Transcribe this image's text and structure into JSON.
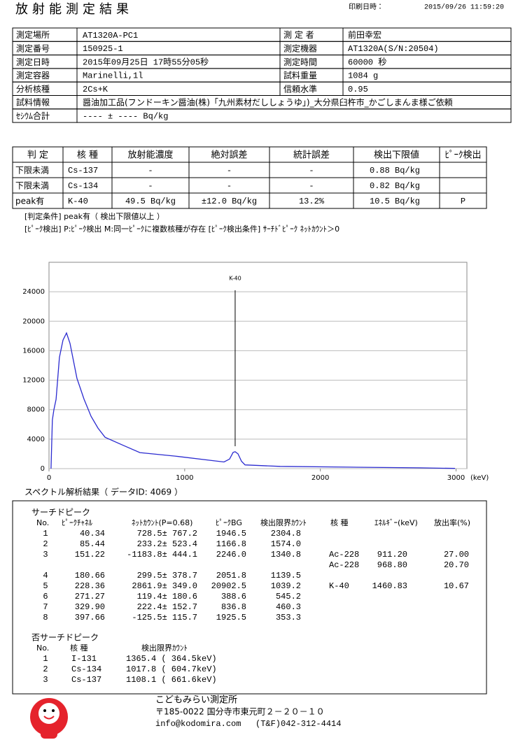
{
  "header": {
    "title": "放射能測定結果",
    "print_date_label": "印刷日時：",
    "print_date": "2015/09/26 11:59:20"
  },
  "info": {
    "rows": [
      [
        "測定場所",
        "AT1320A-PC1",
        "測 定 者",
        "前田幸宏"
      ],
      [
        "測定番号",
        "150925-1",
        "測定機器",
        "AT1320A(S/N:20504)"
      ],
      [
        "測定日時",
        "2015年09月25日 17時55分05秒",
        "測定時間",
        "60000 秒"
      ],
      [
        "測定容器",
        "Marinelli,1l",
        "試料重量",
        "1084 g"
      ],
      [
        "分析核種",
        "2Cs+K",
        "信頼水準",
        "0.95"
      ],
      [
        "試料情報",
        "醤油加工品(フンドーキン醤油(株)「九州素材だししょうゆ」)_大分県臼杵市_かごしまんま様ご依頼"
      ],
      [
        "ｾｼｳﾑ合計",
        "---- ± ---- Bq/kg"
      ]
    ]
  },
  "judgment": {
    "columns": [
      "判 定",
      "核 種",
      "放射能濃度",
      "絶対誤差",
      "統計誤差",
      "検出下限値",
      "ﾋﾟｰｸ検出"
    ],
    "rows": [
      [
        "下限未満",
        "Cs-137",
        "-",
        "-",
        "-",
        "0.88 Bq/kg"
      ],
      [
        "下限未満",
        "Cs-134",
        "-",
        "-",
        "-",
        "0.82 Bq/kg"
      ],
      [
        "peak有",
        "K-40",
        "49.5 Bq/kg",
        "±12.0 Bq/kg",
        "13.2%",
        "10.5 Bq/kg",
        "P"
      ]
    ]
  },
  "notes": [
    "[判定条件] peak有（ 検出下限値以上 ）",
    "[ﾋﾟｰｸ検出] P:ﾋﾟｰｸ検出 M:同一ﾋﾟｰｸに複数核種が存在 [ﾋﾟｰｸ検出条件] ｻｰﾁﾄﾞﾋﾟｰｸ ﾈｯﾄｶｳﾝﾄ＞0"
  ],
  "chart_data": {
    "type": "line",
    "x_label": "(keV)",
    "color": "#2b2bd0",
    "xlim": [
      0,
      3080
    ],
    "ylim": [
      0,
      28000
    ],
    "xticks": [
      0,
      1000,
      2000,
      3000
    ],
    "yticks": [
      0,
      4000,
      8000,
      12000,
      16000,
      20000,
      24000
    ],
    "grid": true,
    "x": [
      15,
      25,
      36,
      52,
      77,
      103,
      129,
      155,
      206,
      258,
      310,
      361,
      413,
      542,
      670,
      929,
      1187,
      1290,
      1331,
      1357,
      1372,
      1393,
      1419,
      1445,
      1703,
      2219,
      2735,
      2993
    ],
    "values": [
      0,
      6600,
      8000,
      9400,
      15100,
      17450,
      18400,
      17000,
      12260,
      9430,
      7100,
      5500,
      4250,
      3200,
      2170,
      1700,
      1130,
      900,
      1300,
      2200,
      2300,
      2000,
      1000,
      500,
      300,
      200,
      100,
      30
    ],
    "annotations": [
      {
        "text": "K-40",
        "x": 1372
      }
    ]
  },
  "analysis": {
    "title": "スペクトル解析結果（ データID: 4069 ）",
    "search": {
      "title": "サーチドピーク",
      "columns": [
        "No.",
        "ﾋﾟｰｸﾁｬﾈﾙ",
        "ﾈｯﾄｶｳﾝﾄ(P=0.68)",
        "ﾋﾟｰｸBG",
        "検出限界ｶｳﾝﾄ"
      ],
      "rows": [
        [
          "1",
          "40.34",
          "728.5± 767.2",
          "1946.5",
          "2304.8"
        ],
        [
          "2",
          "85.44",
          "233.2± 523.4",
          "1166.8",
          "1574.0"
        ],
        [
          "3",
          "151.22",
          "-1183.8± 444.1",
          "2246.0",
          "1340.8"
        ],
        [
          "4",
          "180.66",
          "299.5± 378.7",
          "2051.8",
          "1139.5"
        ],
        [
          "5",
          "228.36",
          "2861.9± 349.0",
          "20902.5",
          "1039.2"
        ],
        [
          "6",
          "271.27",
          "119.4± 180.6",
          "388.6",
          "545.2"
        ],
        [
          "7",
          "329.90",
          "222.4± 152.7",
          "836.8",
          "460.3"
        ],
        [
          "8",
          "397.66",
          "-125.5± 115.7",
          "1925.5",
          "353.3"
        ]
      ],
      "nuclide_columns": [
        "核 種",
        "ｴﾈﾙｷﾞｰ(keV)",
        "放出率(%)"
      ],
      "nuclides": [
        [
          "Ac-228",
          "911.20",
          "27.00"
        ],
        [
          "Ac-228",
          "968.80",
          "20.70"
        ],
        [
          "K-40",
          "1460.83",
          "10.67"
        ]
      ]
    },
    "non_search": {
      "title": "否サーチドピーク",
      "columns": [
        "No.",
        "核 種",
        "検出限界ｶｳﾝﾄ"
      ],
      "rows": [
        [
          "1",
          "I-131",
          "1365.4 ( 364.5keV)"
        ],
        [
          "2",
          "Cs-134",
          "1017.8 ( 604.7keV)"
        ],
        [
          "3",
          "Cs-137",
          "1108.1 ( 661.6keV)"
        ]
      ]
    }
  },
  "footer": {
    "org": "こどもみらい測定所",
    "address": "〒185-0022 国分寺市東元町２－２０－１０",
    "email": "info@kodomira.com",
    "phone": "(T&F)042-312-4414"
  }
}
